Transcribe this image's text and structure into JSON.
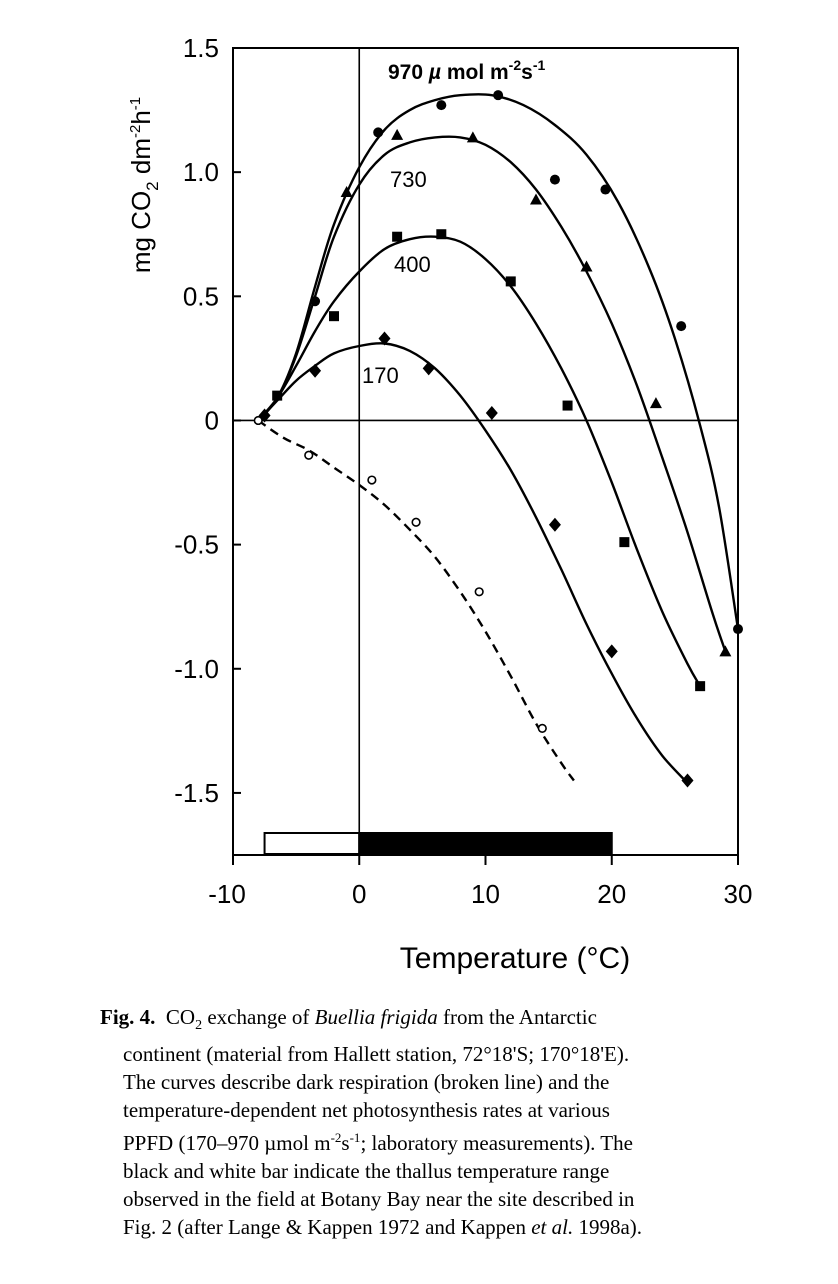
{
  "chart_data": {
    "type": "line",
    "xlabel": "Temperature (°C)",
    "ylabel": "mg CO2 dm-2h-1",
    "xlim": [
      -10,
      30
    ],
    "ylim": [
      -1.75,
      1.5
    ],
    "x_ticks": [
      -10,
      0,
      10,
      20,
      30
    ],
    "x_tick_labels": [
      "-10",
      "0",
      "10",
      "20",
      "30"
    ],
    "y_ticks": [
      1.5,
      1.0,
      0.5,
      0,
      -0.5,
      -1.0,
      -1.5
    ],
    "y_tick_labels": [
      "1.5",
      "1.0",
      "0.5",
      "0",
      "-0.5",
      "-1.0",
      "-1.5"
    ],
    "grid": false,
    "series": [
      {
        "name": "970 µmol m-2s-1",
        "marker": "circle",
        "line": "solid",
        "points": [
          [
            -3.5,
            0.48
          ],
          [
            1.5,
            1.16
          ],
          [
            6.5,
            1.27
          ],
          [
            11,
            1.31
          ],
          [
            15.5,
            0.97
          ],
          [
            19.5,
            0.93
          ],
          [
            25.5,
            0.38
          ],
          [
            30,
            -0.84
          ]
        ],
        "curve": [
          [
            -8,
            0.0
          ],
          [
            -6.5,
            0.09
          ],
          [
            -5,
            0.27
          ],
          [
            -3.5,
            0.54
          ],
          [
            -2,
            0.79
          ],
          [
            0,
            1.02
          ],
          [
            2,
            1.17
          ],
          [
            4,
            1.25
          ],
          [
            6,
            1.29
          ],
          [
            8,
            1.31
          ],
          [
            10.5,
            1.31
          ],
          [
            13,
            1.27
          ],
          [
            15.5,
            1.19
          ],
          [
            18,
            1.07
          ],
          [
            20.5,
            0.88
          ],
          [
            23,
            0.61
          ],
          [
            25,
            0.33
          ],
          [
            27,
            -0.02
          ],
          [
            28.5,
            -0.35
          ],
          [
            30,
            -0.84
          ]
        ]
      },
      {
        "name": "730",
        "marker": "triangle",
        "line": "solid",
        "points": [
          [
            -1,
            0.92
          ],
          [
            3,
            1.15
          ],
          [
            9,
            1.14
          ],
          [
            14,
            0.89
          ],
          [
            18,
            0.62
          ],
          [
            23.5,
            0.07
          ],
          [
            29,
            -0.93
          ]
        ],
        "curve": [
          [
            -8,
            0.0
          ],
          [
            -6.5,
            0.09
          ],
          [
            -5,
            0.26
          ],
          [
            -3.5,
            0.5
          ],
          [
            -2,
            0.74
          ],
          [
            0,
            0.95
          ],
          [
            2,
            1.07
          ],
          [
            4,
            1.12
          ],
          [
            6,
            1.14
          ],
          [
            8,
            1.14
          ],
          [
            10,
            1.11
          ],
          [
            12,
            1.04
          ],
          [
            14,
            0.93
          ],
          [
            16,
            0.78
          ],
          [
            18,
            0.6
          ],
          [
            20,
            0.39
          ],
          [
            22,
            0.14
          ],
          [
            24,
            -0.15
          ],
          [
            26,
            -0.45
          ],
          [
            28,
            -0.78
          ],
          [
            29,
            -0.93
          ]
        ]
      },
      {
        "name": "400",
        "marker": "square",
        "line": "solid",
        "points": [
          [
            -6.5,
            0.1
          ],
          [
            -2,
            0.42
          ],
          [
            3,
            0.74
          ],
          [
            6.5,
            0.75
          ],
          [
            12,
            0.56
          ],
          [
            16.5,
            0.06
          ],
          [
            21,
            -0.49
          ],
          [
            27,
            -1.07
          ]
        ],
        "curve": [
          [
            -8,
            0.0
          ],
          [
            -6.5,
            0.09
          ],
          [
            -5,
            0.22
          ],
          [
            -3.5,
            0.36
          ],
          [
            -2,
            0.48
          ],
          [
            0,
            0.6
          ],
          [
            2,
            0.69
          ],
          [
            4,
            0.73
          ],
          [
            6,
            0.74
          ],
          [
            8,
            0.72
          ],
          [
            10,
            0.65
          ],
          [
            12,
            0.54
          ],
          [
            14,
            0.39
          ],
          [
            16,
            0.21
          ],
          [
            18,
            0.0
          ],
          [
            20,
            -0.25
          ],
          [
            22,
            -0.52
          ],
          [
            24,
            -0.77
          ],
          [
            26,
            -0.98
          ],
          [
            27,
            -1.07
          ]
        ]
      },
      {
        "name": "170",
        "marker": "diamond",
        "line": "solid",
        "points": [
          [
            -7.5,
            0.02
          ],
          [
            -3.5,
            0.2
          ],
          [
            2,
            0.33
          ],
          [
            5.5,
            0.21
          ],
          [
            10.5,
            0.03
          ],
          [
            15.5,
            -0.42
          ],
          [
            20,
            -0.93
          ],
          [
            26,
            -1.45
          ]
        ],
        "curve": [
          [
            -8,
            0.0
          ],
          [
            -6.5,
            0.08
          ],
          [
            -5,
            0.16
          ],
          [
            -3.5,
            0.22
          ],
          [
            -2,
            0.27
          ],
          [
            0,
            0.3
          ],
          [
            2,
            0.31
          ],
          [
            4,
            0.28
          ],
          [
            6,
            0.21
          ],
          [
            8,
            0.1
          ],
          [
            10,
            -0.04
          ],
          [
            12,
            -0.2
          ],
          [
            14,
            -0.39
          ],
          [
            16,
            -0.6
          ],
          [
            18,
            -0.82
          ],
          [
            20,
            -1.02
          ],
          [
            22,
            -1.2
          ],
          [
            24,
            -1.35
          ],
          [
            26,
            -1.46
          ]
        ]
      },
      {
        "name": "",
        "marker": "open-circle",
        "line": "dashed",
        "points": [
          [
            -8,
            0.0
          ],
          [
            -4,
            -0.14
          ],
          [
            1,
            -0.24
          ],
          [
            4.5,
            -0.41
          ],
          [
            9.5,
            -0.69
          ],
          [
            14.5,
            -1.24
          ]
        ],
        "curve": [
          [
            -8,
            0.0
          ],
          [
            -6,
            -0.07
          ],
          [
            -4,
            -0.12
          ],
          [
            -2,
            -0.19
          ],
          [
            0,
            -0.26
          ],
          [
            2,
            -0.34
          ],
          [
            4,
            -0.44
          ],
          [
            6,
            -0.55
          ],
          [
            8,
            -0.69
          ],
          [
            10,
            -0.85
          ],
          [
            12,
            -1.03
          ],
          [
            14,
            -1.22
          ],
          [
            16,
            -1.38
          ],
          [
            17,
            -1.45
          ]
        ]
      }
    ],
    "annotations": [
      {
        "text": "970 µmol m-2s-1",
        "series": "970 µmol m-2s-1"
      },
      {
        "text": "730",
        "series": "730"
      },
      {
        "text": "400",
        "series": "400"
      },
      {
        "text": "170",
        "series": "170"
      }
    ],
    "field_range_bars": [
      {
        "color": "white",
        "from": -7.5,
        "to": 0
      },
      {
        "color": "black",
        "from": 0,
        "to": 20
      }
    ]
  },
  "caption": {
    "label": "Fig. 4.",
    "lines": [
      [
        "CO",
        "2",
        " exchange of ",
        "Buellia frigida",
        " from the Antarctic"
      ],
      [
        "continent (material from Hallett station, 72°18'S; 170°18'E)."
      ],
      [
        "The curves describe dark respiration (broken line) and the"
      ],
      [
        "temperature-dependent net photosynthesis rates at various"
      ],
      [
        "PPFD (170–970 µmol m",
        "-2",
        "s",
        "-1",
        "; laboratory measurements).  The"
      ],
      [
        "black and white bar indicate the thallus temperature range"
      ],
      [
        "observed in the field at Botany Bay near the site described in"
      ],
      [
        "Fig. 2 (after Lange & Kappen 1972 and Kappen ",
        "et al.",
        " 1998a)."
      ]
    ]
  }
}
